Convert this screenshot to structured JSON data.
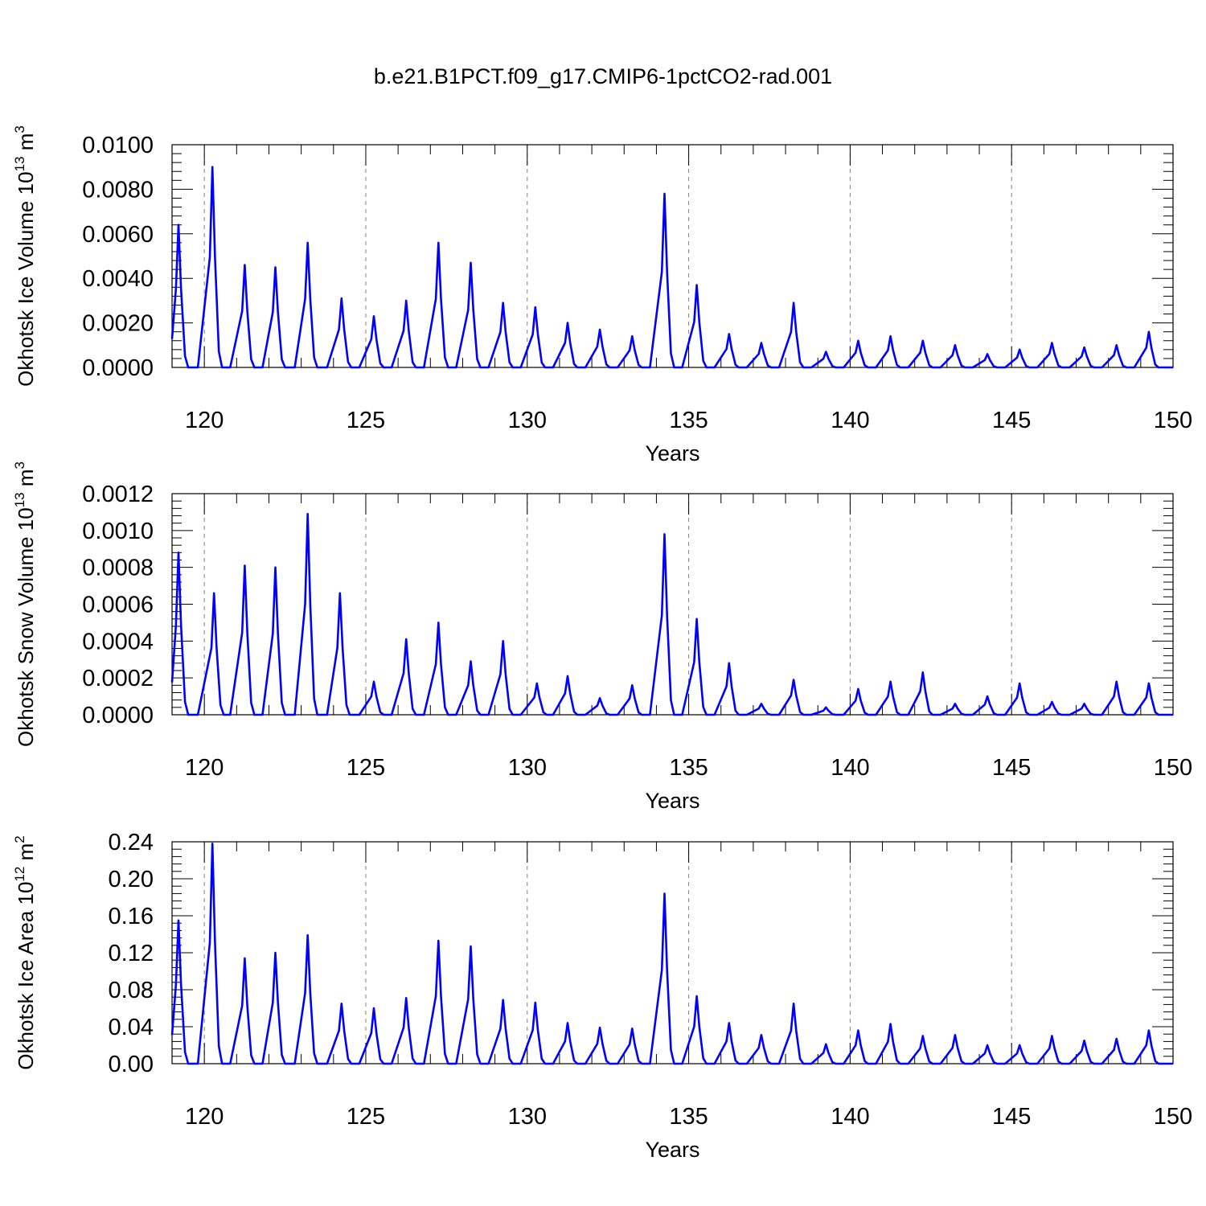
{
  "title": "b.e21.B1PCT.f09_g17.CMIP6-1pctCO2-rad.001",
  "colors": {
    "series": "#0000ff",
    "axis": "#000000",
    "grid": "#808080"
  },
  "chart_data": [
    {
      "type": "line",
      "ylabel": "Okhotsk Ice Volume",
      "yunit": "10",
      "yunit_exp": "13",
      "yunit_suffix": "m",
      "yunit_suffix_exp": "3",
      "xlabel": "Years",
      "xlim": [
        119.0,
        150.0
      ],
      "ylim": [
        0,
        0.01
      ],
      "x_ticks": [
        "120",
        "125",
        "130",
        "135",
        "140",
        "145",
        "150"
      ],
      "y_ticks": [
        "0.0000",
        "0.0020",
        "0.0040",
        "0.0060",
        "0.0080",
        "0.0100"
      ],
      "grid": "vertical dashed at major x ticks",
      "peaks": [
        {
          "x": 119.2,
          "y": 0.0064
        },
        {
          "x": 120.25,
          "y": 0.009
        },
        {
          "x": 121.25,
          "y": 0.0046
        },
        {
          "x": 122.2,
          "y": 0.0045
        },
        {
          "x": 123.2,
          "y": 0.0056
        },
        {
          "x": 124.25,
          "y": 0.0031
        },
        {
          "x": 125.25,
          "y": 0.0023
        },
        {
          "x": 126.25,
          "y": 0.003
        },
        {
          "x": 127.25,
          "y": 0.0056
        },
        {
          "x": 128.25,
          "y": 0.0047
        },
        {
          "x": 129.25,
          "y": 0.0029
        },
        {
          "x": 130.25,
          "y": 0.0027
        },
        {
          "x": 131.25,
          "y": 0.002
        },
        {
          "x": 132.25,
          "y": 0.0017
        },
        {
          "x": 133.25,
          "y": 0.0014
        },
        {
          "x": 134.25,
          "y": 0.0078
        },
        {
          "x": 135.25,
          "y": 0.0037
        },
        {
          "x": 136.25,
          "y": 0.0015
        },
        {
          "x": 137.25,
          "y": 0.0011
        },
        {
          "x": 138.25,
          "y": 0.0029
        },
        {
          "x": 139.25,
          "y": 0.0007
        },
        {
          "x": 140.25,
          "y": 0.0012
        },
        {
          "x": 141.25,
          "y": 0.0014
        },
        {
          "x": 142.25,
          "y": 0.0012
        },
        {
          "x": 143.25,
          "y": 0.001
        },
        {
          "x": 144.25,
          "y": 0.0006
        },
        {
          "x": 145.25,
          "y": 0.0008
        },
        {
          "x": 146.25,
          "y": 0.0011
        },
        {
          "x": 147.25,
          "y": 0.0009
        },
        {
          "x": 148.25,
          "y": 0.001
        },
        {
          "x": 149.25,
          "y": 0.0016
        }
      ]
    },
    {
      "type": "line",
      "ylabel": "Okhotsk Snow Volume",
      "yunit": "10",
      "yunit_exp": "13",
      "yunit_suffix": "m",
      "yunit_suffix_exp": "3",
      "xlabel": "Years",
      "xlim": [
        119.0,
        150.0
      ],
      "ylim": [
        0,
        0.0012
      ],
      "x_ticks": [
        "120",
        "125",
        "130",
        "135",
        "140",
        "145",
        "150"
      ],
      "y_ticks": [
        "0.0000",
        "0.0002",
        "0.0004",
        "0.0006",
        "0.0008",
        "0.0010",
        "0.0012"
      ],
      "grid": "vertical dashed at major x ticks",
      "peaks": [
        {
          "x": 119.2,
          "y": 0.00088
        },
        {
          "x": 120.3,
          "y": 0.00066
        },
        {
          "x": 121.25,
          "y": 0.00081
        },
        {
          "x": 122.2,
          "y": 0.0008
        },
        {
          "x": 123.2,
          "y": 0.00109
        },
        {
          "x": 124.2,
          "y": 0.00066
        },
        {
          "x": 125.25,
          "y": 0.00018
        },
        {
          "x": 126.25,
          "y": 0.00041
        },
        {
          "x": 127.25,
          "y": 0.0005
        },
        {
          "x": 128.25,
          "y": 0.00029
        },
        {
          "x": 129.25,
          "y": 0.0004
        },
        {
          "x": 130.3,
          "y": 0.00017
        },
        {
          "x": 131.25,
          "y": 0.00021
        },
        {
          "x": 132.25,
          "y": 9e-05
        },
        {
          "x": 133.25,
          "y": 0.00016
        },
        {
          "x": 134.25,
          "y": 0.00098
        },
        {
          "x": 135.25,
          "y": 0.00052
        },
        {
          "x": 136.25,
          "y": 0.00028
        },
        {
          "x": 137.25,
          "y": 6e-05
        },
        {
          "x": 138.25,
          "y": 0.00019
        },
        {
          "x": 139.25,
          "y": 4e-05
        },
        {
          "x": 140.25,
          "y": 0.00014
        },
        {
          "x": 141.25,
          "y": 0.00018
        },
        {
          "x": 142.25,
          "y": 0.00023
        },
        {
          "x": 143.25,
          "y": 6e-05
        },
        {
          "x": 144.25,
          "y": 0.0001
        },
        {
          "x": 145.25,
          "y": 0.00017
        },
        {
          "x": 146.25,
          "y": 7e-05
        },
        {
          "x": 147.25,
          "y": 6e-05
        },
        {
          "x": 148.25,
          "y": 0.00018
        },
        {
          "x": 149.25,
          "y": 0.00017
        }
      ]
    },
    {
      "type": "line",
      "ylabel": "Okhotsk Ice Area",
      "yunit": "10",
      "yunit_exp": "12",
      "yunit_suffix": "m",
      "yunit_suffix_exp": "2",
      "xlabel": "Years",
      "xlim": [
        119.0,
        150.0
      ],
      "ylim": [
        0,
        0.24
      ],
      "x_ticks": [
        "120",
        "125",
        "130",
        "135",
        "140",
        "145",
        "150"
      ],
      "y_ticks": [
        "0.00",
        "0.04",
        "0.08",
        "0.12",
        "0.16",
        "0.20",
        "0.24"
      ],
      "grid": "vertical dashed at major x ticks",
      "peaks": [
        {
          "x": 119.2,
          "y": 0.155
        },
        {
          "x": 120.25,
          "y": 0.238
        },
        {
          "x": 121.25,
          "y": 0.114
        },
        {
          "x": 122.2,
          "y": 0.12
        },
        {
          "x": 123.2,
          "y": 0.139
        },
        {
          "x": 124.25,
          "y": 0.065
        },
        {
          "x": 125.25,
          "y": 0.06
        },
        {
          "x": 126.25,
          "y": 0.071
        },
        {
          "x": 127.25,
          "y": 0.133
        },
        {
          "x": 128.25,
          "y": 0.127
        },
        {
          "x": 129.25,
          "y": 0.069
        },
        {
          "x": 130.25,
          "y": 0.066
        },
        {
          "x": 131.25,
          "y": 0.044
        },
        {
          "x": 132.25,
          "y": 0.039
        },
        {
          "x": 133.25,
          "y": 0.038
        },
        {
          "x": 134.25,
          "y": 0.184
        },
        {
          "x": 135.25,
          "y": 0.073
        },
        {
          "x": 136.25,
          "y": 0.044
        },
        {
          "x": 137.25,
          "y": 0.031
        },
        {
          "x": 138.25,
          "y": 0.065
        },
        {
          "x": 139.25,
          "y": 0.021
        },
        {
          "x": 140.25,
          "y": 0.036
        },
        {
          "x": 141.25,
          "y": 0.043
        },
        {
          "x": 142.25,
          "y": 0.03
        },
        {
          "x": 143.25,
          "y": 0.031
        },
        {
          "x": 144.25,
          "y": 0.02
        },
        {
          "x": 145.25,
          "y": 0.02
        },
        {
          "x": 146.25,
          "y": 0.03
        },
        {
          "x": 147.25,
          "y": 0.025
        },
        {
          "x": 148.25,
          "y": 0.027
        },
        {
          "x": 149.25,
          "y": 0.036
        }
      ]
    }
  ]
}
